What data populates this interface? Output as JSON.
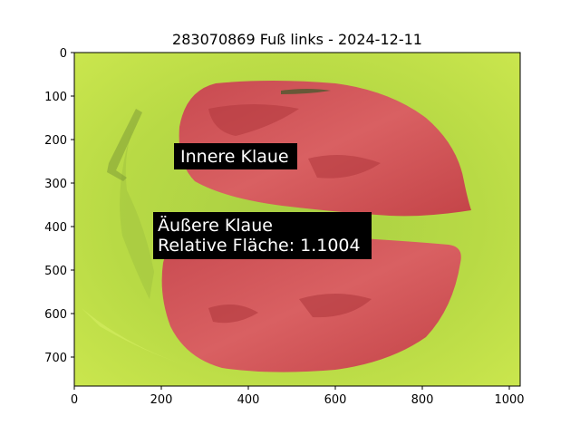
{
  "figure": {
    "title": "283070869 Fuß links - 2024-12-11"
  },
  "axes": {
    "x_ticks": [
      "0",
      "200",
      "400",
      "600",
      "800",
      "1000"
    ],
    "y_ticks": [
      "0",
      "100",
      "200",
      "300",
      "400",
      "500",
      "600",
      "700"
    ]
  },
  "annotations": {
    "inner": "Innere Klaue",
    "outer_line1": "Äußere Klaue",
    "outer_line2": "Relative Fläche: 1.1004"
  },
  "colors": {
    "background": "#c2e04a",
    "claw_overlay": "#d4565a",
    "label_box": "#000000"
  }
}
